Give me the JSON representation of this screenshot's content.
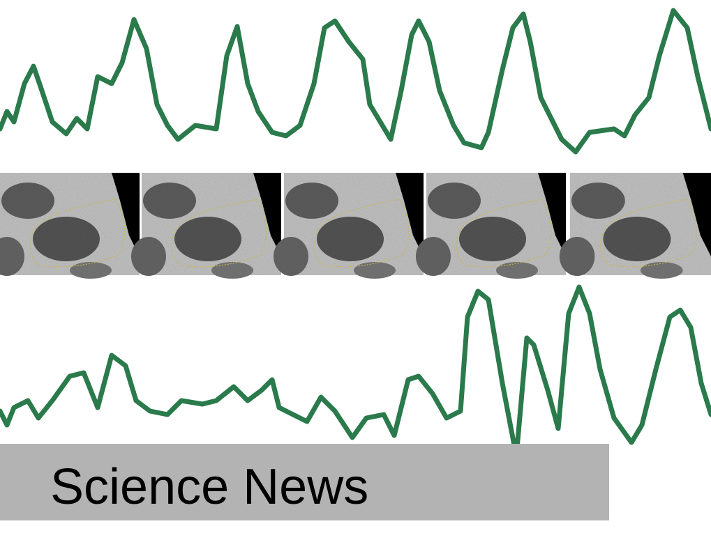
{
  "caption": "Science News"
}
